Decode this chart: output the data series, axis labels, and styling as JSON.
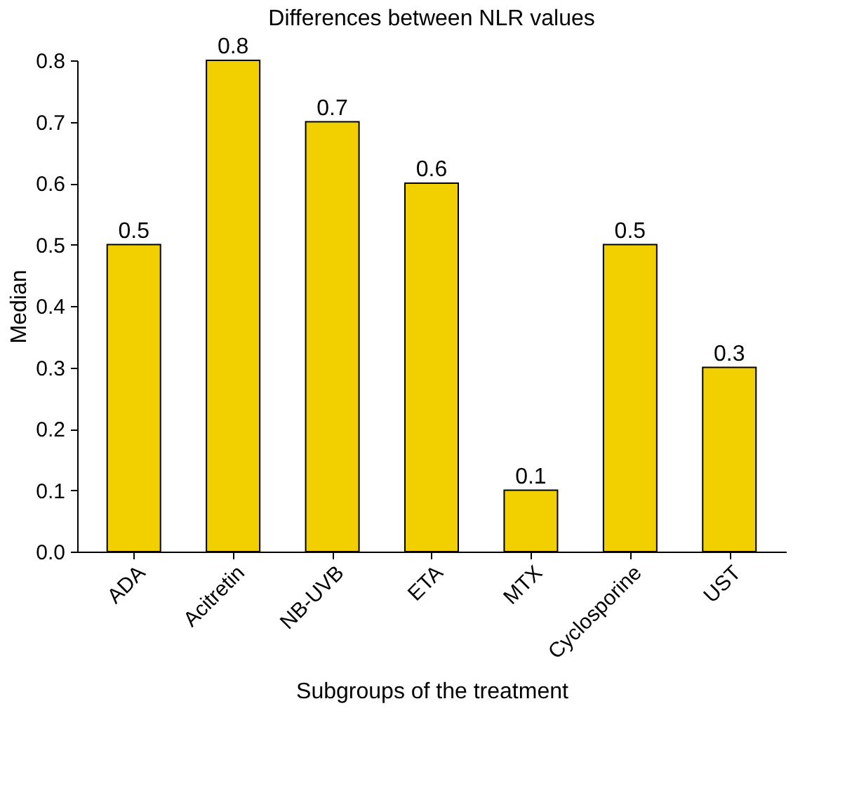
{
  "chart_data": {
    "type": "bar",
    "title": "Differences between NLR values",
    "xlabel": "Subgroups of the treatment",
    "ylabel": "Median",
    "categories": [
      "ADA",
      "Acitretin",
      "NB-UVB",
      "ETA",
      "MTX",
      "Cyclosporine",
      "UST"
    ],
    "values": [
      0.5,
      0.8,
      0.7,
      0.6,
      0.1,
      0.5,
      0.3
    ],
    "color": "#f2d000",
    "ylim": [
      0,
      0.8
    ],
    "yticks": [
      {
        "value": 0,
        "label": "0.0"
      },
      {
        "value": 0.1,
        "label": "0.1"
      },
      {
        "value": 0.2,
        "label": "0.2"
      },
      {
        "value": 0.3,
        "label": "0.3"
      },
      {
        "value": 0.4,
        "label": "0.4"
      },
      {
        "value": 0.5,
        "label": "0.5"
      },
      {
        "value": 0.6,
        "label": "0.6"
      },
      {
        "value": 0.7,
        "label": "0.7"
      },
      {
        "value": 0.8,
        "label": "0.8"
      }
    ],
    "data_labels": true,
    "grid": false
  }
}
